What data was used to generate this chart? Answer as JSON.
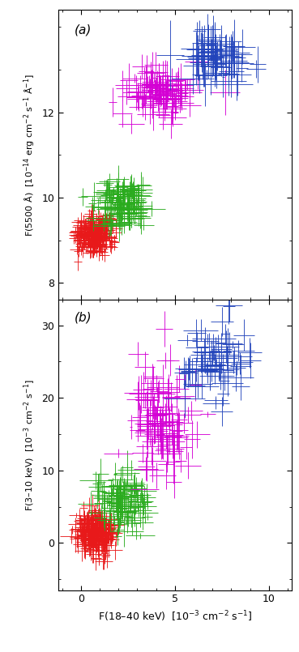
{
  "panel_a_label": "(a)",
  "panel_b_label": "(b)",
  "ylabel_a": "F(5500 Å)  [10$^{-14}$ erg cm$^{-2}$ s$^{-1}$ Å$^{-1}$]",
  "ylabel_b": "F(3–10 keV)  [10$^{-3}$ cm$^{-2}$ s$^{-1}$]",
  "xlabel": "F(18–40 keV)  [10$^{-3}$ cm$^{-2}$ s$^{-1}$]",
  "xlim": [
    -1.2,
    11.2
  ],
  "ylim_a": [
    7.6,
    14.4
  ],
  "ylim_b": [
    -6.5,
    33.5
  ],
  "yticks_a": [
    8,
    10,
    12
  ],
  "yticks_b": [
    0,
    10,
    20,
    30
  ],
  "xticks": [
    0,
    5,
    10
  ],
  "colors": {
    "red": "#e8191a",
    "green": "#2aab1e",
    "magenta": "#d400d4",
    "blue": "#2244bb"
  },
  "groups": {
    "red": {
      "x_mean": 0.75,
      "x_std": 0.5,
      "x_err_mean": 0.3,
      "x_err_std": 0.1,
      "ya_mean": 9.15,
      "ya_std": 0.22,
      "ya_err_mean": 0.14,
      "ya_err_std": 0.05,
      "yb_mean": 1.5,
      "yb_std": 1.4,
      "yb_err_mean": 1.2,
      "yb_err_std": 0.5,
      "n": 250
    },
    "green": {
      "x_mean": 2.2,
      "x_std": 0.65,
      "x_err_mean": 0.5,
      "x_err_std": 0.18,
      "ya_mean": 9.85,
      "ya_std": 0.28,
      "ya_err_mean": 0.22,
      "ya_err_std": 0.08,
      "yb_mean": 5.5,
      "yb_std": 2.0,
      "yb_err_mean": 1.4,
      "yb_err_std": 0.5,
      "n": 120
    },
    "magenta": {
      "x_mean": 4.3,
      "x_std": 0.9,
      "x_err_mean": 0.55,
      "x_err_std": 0.18,
      "ya_mean": 12.55,
      "ya_std": 0.3,
      "ya_err_mean": 0.28,
      "ya_err_std": 0.1,
      "yb_mean": 16.0,
      "yb_std": 3.8,
      "yb_err_mean": 2.0,
      "yb_err_std": 0.7,
      "n": 110
    },
    "blue": {
      "x_mean": 7.3,
      "x_std": 0.85,
      "x_err_mean": 0.65,
      "x_err_std": 0.22,
      "ya_mean": 13.25,
      "ya_std": 0.28,
      "ya_err_mean": 0.4,
      "ya_err_std": 0.14,
      "yb_mean": 25.0,
      "yb_std": 2.8,
      "yb_err_mean": 1.6,
      "yb_err_std": 0.5,
      "n": 75
    }
  }
}
